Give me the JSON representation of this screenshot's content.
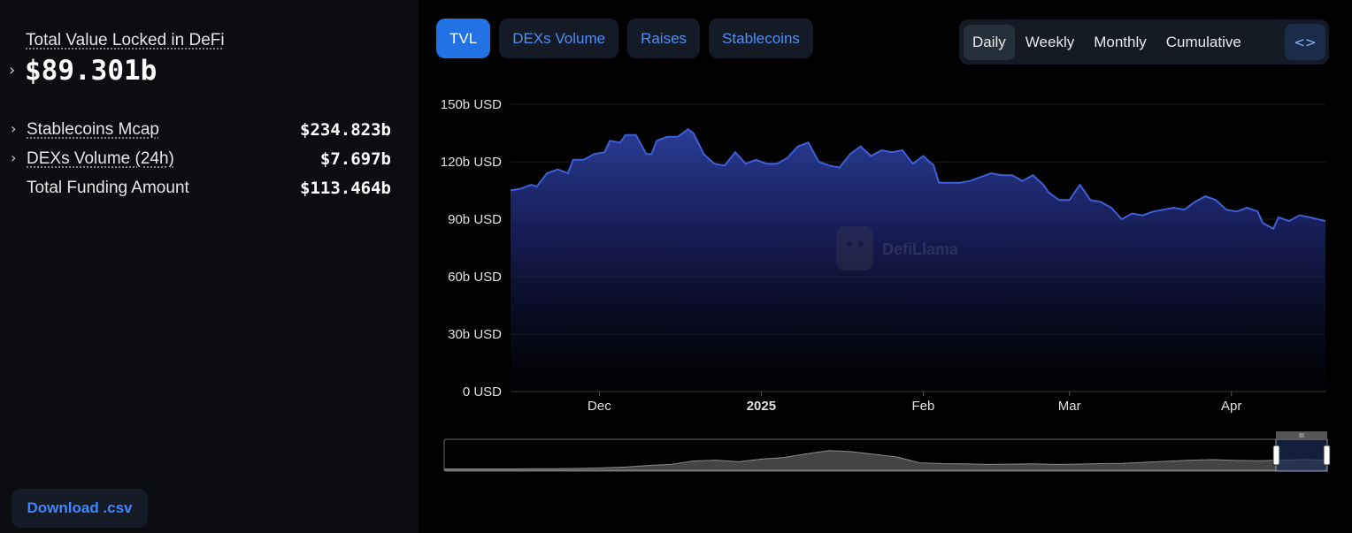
{
  "summary": {
    "tvl_label": "Total Value Locked in DeFi",
    "tvl_value": "$89.301b",
    "stats": [
      {
        "label": "Stablecoins Mcap",
        "value": "$234.823b"
      },
      {
        "label": "DEXs Volume (24h)",
        "value": "$7.697b"
      },
      {
        "label": "Total Funding Amount",
        "value": "$113.464b"
      }
    ],
    "download_label": "Download .csv"
  },
  "tabs": [
    "TVL",
    "DEXs Volume",
    "Raises",
    "Stablecoins"
  ],
  "periods": [
    "Daily",
    "Weekly",
    "Monthly",
    "Cumulative"
  ],
  "embed_icon": "code-icon",
  "watermark": "DefiLlama",
  "colors": {
    "accent": "#2172e5",
    "line": "#3d5fd9",
    "area_top": "#2c3f9e",
    "tab_text": "#4f8ff7"
  },
  "chart_data": {
    "type": "area",
    "y_ticks": [
      "0 USD",
      "30b USD",
      "60b USD",
      "90b USD",
      "120b USD",
      "150b USD"
    ],
    "ylim": [
      0,
      150
    ],
    "x_ticks": [
      {
        "label": "Dec",
        "date": "2024-12-01",
        "bold": false
      },
      {
        "label": "2025",
        "date": "2025-01-01",
        "bold": true
      },
      {
        "label": "Feb",
        "date": "2025-02-01",
        "bold": false
      },
      {
        "label": "Mar",
        "date": "2025-03-01",
        "bold": false
      },
      {
        "label": "Apr",
        "date": "2025-04-01",
        "bold": false
      }
    ],
    "xlim": [
      "2024-11-14",
      "2025-04-19"
    ],
    "grid": true,
    "series": [
      {
        "unit": "b USD",
        "points": [
          [
            "2024-11-14",
            105
          ],
          [
            "2024-11-16",
            106
          ],
          [
            "2024-11-18",
            108
          ],
          [
            "2024-11-19",
            107
          ],
          [
            "2024-11-21",
            114
          ],
          [
            "2024-11-23",
            116
          ],
          [
            "2024-11-25",
            114
          ],
          [
            "2024-11-26",
            121
          ],
          [
            "2024-11-28",
            121
          ],
          [
            "2024-11-30",
            124
          ],
          [
            "2024-12-02",
            125
          ],
          [
            "2024-12-03",
            131
          ],
          [
            "2024-12-05",
            130
          ],
          [
            "2024-12-06",
            134
          ],
          [
            "2024-12-08",
            134
          ],
          [
            "2024-12-10",
            124
          ],
          [
            "2024-12-11",
            124
          ],
          [
            "2024-12-12",
            131
          ],
          [
            "2024-12-14",
            133
          ],
          [
            "2024-12-16",
            133
          ],
          [
            "2024-12-18",
            137
          ],
          [
            "2024-12-19",
            135
          ],
          [
            "2024-12-21",
            124
          ],
          [
            "2024-12-23",
            119
          ],
          [
            "2024-12-25",
            118
          ],
          [
            "2024-12-27",
            125
          ],
          [
            "2024-12-29",
            119
          ],
          [
            "2024-12-31",
            121
          ],
          [
            "2025-01-02",
            119
          ],
          [
            "2025-01-04",
            119
          ],
          [
            "2025-01-06",
            122
          ],
          [
            "2025-01-08",
            128
          ],
          [
            "2025-01-10",
            130
          ],
          [
            "2025-01-12",
            120
          ],
          [
            "2025-01-14",
            118
          ],
          [
            "2025-01-16",
            117
          ],
          [
            "2025-01-18",
            124
          ],
          [
            "2025-01-20",
            128
          ],
          [
            "2025-01-22",
            123
          ],
          [
            "2025-01-24",
            126
          ],
          [
            "2025-01-26",
            125
          ],
          [
            "2025-01-28",
            126
          ],
          [
            "2025-01-30",
            119
          ],
          [
            "2025-02-01",
            123
          ],
          [
            "2025-02-03",
            118
          ],
          [
            "2025-02-04",
            109
          ],
          [
            "2025-02-06",
            109
          ],
          [
            "2025-02-08",
            109
          ],
          [
            "2025-02-10",
            110
          ],
          [
            "2025-02-12",
            112
          ],
          [
            "2025-02-14",
            114
          ],
          [
            "2025-02-16",
            113
          ],
          [
            "2025-02-18",
            113
          ],
          [
            "2025-02-20",
            110
          ],
          [
            "2025-02-22",
            113
          ],
          [
            "2025-02-24",
            108
          ],
          [
            "2025-02-25",
            104
          ],
          [
            "2025-02-27",
            100
          ],
          [
            "2025-03-01",
            100
          ],
          [
            "2025-03-03",
            108
          ],
          [
            "2025-03-05",
            100
          ],
          [
            "2025-03-07",
            99
          ],
          [
            "2025-03-09",
            96
          ],
          [
            "2025-03-11",
            90
          ],
          [
            "2025-03-13",
            93
          ],
          [
            "2025-03-15",
            92
          ],
          [
            "2025-03-17",
            94
          ],
          [
            "2025-03-19",
            95
          ],
          [
            "2025-03-21",
            96
          ],
          [
            "2025-03-23",
            95
          ],
          [
            "2025-03-25",
            99
          ],
          [
            "2025-03-27",
            102
          ],
          [
            "2025-03-29",
            100
          ],
          [
            "2025-03-31",
            95
          ],
          [
            "2025-04-02",
            94
          ],
          [
            "2025-04-04",
            96
          ],
          [
            "2025-04-06",
            94
          ],
          [
            "2025-04-07",
            88
          ],
          [
            "2025-04-09",
            85
          ],
          [
            "2025-04-10",
            91
          ],
          [
            "2025-04-12",
            89
          ],
          [
            "2025-04-14",
            92
          ],
          [
            "2025-04-16",
            91
          ],
          [
            "2025-04-19",
            89
          ]
        ]
      }
    ]
  }
}
